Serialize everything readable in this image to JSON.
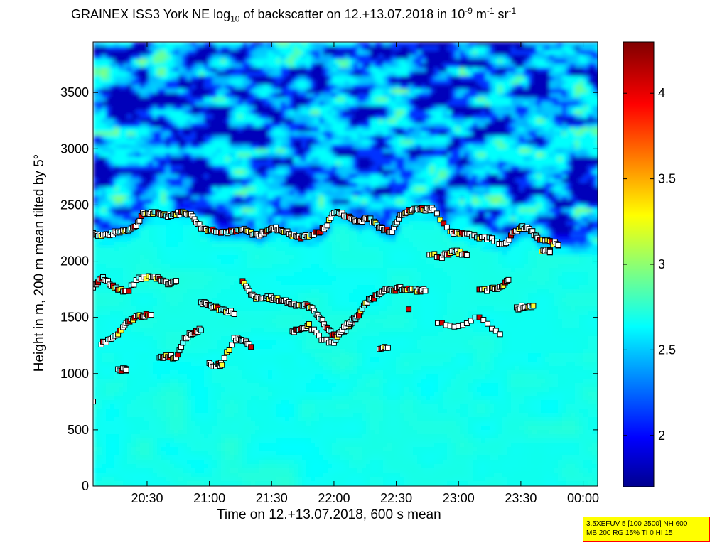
{
  "chart_data": {
    "type": "heatmap",
    "title_parts": {
      "prefix": "GRAINEX ISS3 York NE log",
      "sub": "10",
      "middle": " of backscatter on 12.+13.07.2018 in 10",
      "sup1": "-9",
      "m": " m",
      "sup2": "-1",
      "sr": " sr",
      "sup3": "-1"
    },
    "xlabel": "Time on 12.+13.07.2018, 600 s mean",
    "ylabel": "Height in m, 200 m mean tilted by 5°",
    "x_ticks": [
      "20:30",
      "21:00",
      "21:30",
      "22:00",
      "22:30",
      "23:00",
      "23:30",
      "00:00"
    ],
    "x_tick_minutes": [
      1230,
      1260,
      1290,
      1320,
      1350,
      1380,
      1410,
      1440
    ],
    "xlim_minutes": [
      1204,
      1447
    ],
    "y_ticks": [
      0,
      500,
      1000,
      1500,
      2000,
      2500,
      3000,
      3500
    ],
    "ylim": [
      0,
      3950
    ],
    "colorbar": {
      "ticks": [
        2,
        2.5,
        3,
        3.5,
        4
      ],
      "range": [
        1.7,
        4.3
      ],
      "colormap": "jet"
    },
    "mixing_layer_markers": [
      {
        "name": "upper",
        "points": [
          [
            1204,
            2250
          ],
          [
            1208,
            2230
          ],
          [
            1212,
            2240
          ],
          [
            1216,
            2260
          ],
          [
            1220,
            2280
          ],
          [
            1224,
            2300
          ],
          [
            1228,
            2420
          ],
          [
            1232,
            2430
          ],
          [
            1236,
            2420
          ],
          [
            1240,
            2410
          ],
          [
            1244,
            2420
          ],
          [
            1248,
            2440
          ],
          [
            1252,
            2400
          ],
          [
            1256,
            2300
          ],
          [
            1260,
            2280
          ],
          [
            1264,
            2270
          ],
          [
            1268,
            2260
          ],
          [
            1272,
            2260
          ],
          [
            1276,
            2280
          ],
          [
            1280,
            2250
          ],
          [
            1284,
            2230
          ],
          [
            1288,
            2280
          ],
          [
            1292,
            2290
          ],
          [
            1296,
            2270
          ],
          [
            1300,
            2230
          ],
          [
            1304,
            2210
          ],
          [
            1308,
            2230
          ],
          [
            1312,
            2250
          ],
          [
            1316,
            2300
          ],
          [
            1320,
            2440
          ],
          [
            1324,
            2420
          ],
          [
            1328,
            2380
          ],
          [
            1332,
            2350
          ],
          [
            1336,
            2390
          ],
          [
            1340,
            2330
          ],
          [
            1344,
            2280
          ],
          [
            1348,
            2270
          ],
          [
            1352,
            2420
          ],
          [
            1356,
            2440
          ],
          [
            1360,
            2470
          ],
          [
            1364,
            2460
          ],
          [
            1368,
            2470
          ],
          [
            1376,
            2250
          ],
          [
            1380,
            2250
          ],
          [
            1384,
            2250
          ],
          [
            1390,
            2210
          ],
          [
            1396,
            2200
          ],
          [
            1402,
            2150
          ],
          [
            1406,
            2240
          ],
          [
            1410,
            2300
          ],
          [
            1414,
            2290
          ],
          [
            1418,
            2200
          ],
          [
            1424,
            2170
          ],
          [
            1428,
            2150
          ]
        ]
      },
      {
        "name": "middle",
        "points": [
          [
            1204,
            1770
          ],
          [
            1208,
            1860
          ],
          [
            1212,
            1800
          ],
          [
            1216,
            1750
          ],
          [
            1220,
            1720
          ],
          [
            1226,
            1850
          ],
          [
            1232,
            1860
          ],
          [
            1236,
            1850
          ],
          [
            1240,
            1800
          ],
          [
            1244,
            1830
          ],
          [
            1256,
            1630
          ],
          [
            1260,
            1610
          ],
          [
            1264,
            1580
          ],
          [
            1268,
            1560
          ],
          [
            1272,
            1540
          ],
          [
            1276,
            1820
          ],
          [
            1280,
            1700
          ],
          [
            1284,
            1660
          ],
          [
            1288,
            1680
          ],
          [
            1292,
            1660
          ],
          [
            1296,
            1650
          ],
          [
            1300,
            1620
          ],
          [
            1304,
            1610
          ],
          [
            1308,
            1600
          ],
          [
            1312,
            1530
          ],
          [
            1316,
            1420
          ],
          [
            1320,
            1340
          ],
          [
            1324,
            1360
          ],
          [
            1328,
            1440
          ],
          [
            1332,
            1530
          ],
          [
            1336,
            1640
          ],
          [
            1340,
            1690
          ],
          [
            1344,
            1750
          ],
          [
            1348,
            1730
          ],
          [
            1352,
            1760
          ],
          [
            1356,
            1750
          ],
          [
            1360,
            1740
          ],
          [
            1364,
            1740
          ],
          [
            1366,
            2060
          ],
          [
            1372,
            2040
          ],
          [
            1376,
            2080
          ],
          [
            1380,
            2080
          ],
          [
            1384,
            2050
          ],
          [
            1390,
            1740
          ],
          [
            1396,
            1750
          ],
          [
            1400,
            1760
          ],
          [
            1404,
            1840
          ],
          [
            1408,
            1580
          ],
          [
            1412,
            1600
          ],
          [
            1416,
            1600
          ],
          [
            1420,
            2080
          ],
          [
            1424,
            2090
          ]
        ]
      },
      {
        "name": "lower",
        "points": [
          [
            1204,
            740
          ],
          [
            1208,
            1270
          ],
          [
            1212,
            1300
          ],
          [
            1216,
            1350
          ],
          [
            1220,
            1440
          ],
          [
            1224,
            1500
          ],
          [
            1228,
            1520
          ],
          [
            1232,
            1510
          ],
          [
            1236,
            1140
          ],
          [
            1240,
            1160
          ],
          [
            1244,
            1140
          ],
          [
            1248,
            1320
          ],
          [
            1252,
            1360
          ],
          [
            1256,
            1400
          ],
          [
            1260,
            1080
          ],
          [
            1264,
            1070
          ],
          [
            1266,
            1090
          ],
          [
            1272,
            1310
          ],
          [
            1276,
            1300
          ],
          [
            1280,
            1250
          ],
          [
            1300,
            1370
          ],
          [
            1304,
            1400
          ],
          [
            1308,
            1430
          ],
          [
            1314,
            1300
          ],
          [
            1320,
            1280
          ],
          [
            1324,
            1400
          ],
          [
            1328,
            1460
          ],
          [
            1332,
            1520
          ],
          [
            1342,
            1230
          ],
          [
            1346,
            1240
          ],
          [
            1356,
            1560
          ],
          [
            1370,
            1440
          ],
          [
            1380,
            1420
          ],
          [
            1390,
            1500
          ],
          [
            1400,
            1350
          ],
          [
            1216,
            1040
          ],
          [
            1220,
            1030
          ]
        ]
      }
    ]
  },
  "info_box": {
    "line1": "3.5XEFUV 5 [100 2500] NH 600",
    "line2": "MB 200 RG 15% TI 0 HI 15"
  }
}
